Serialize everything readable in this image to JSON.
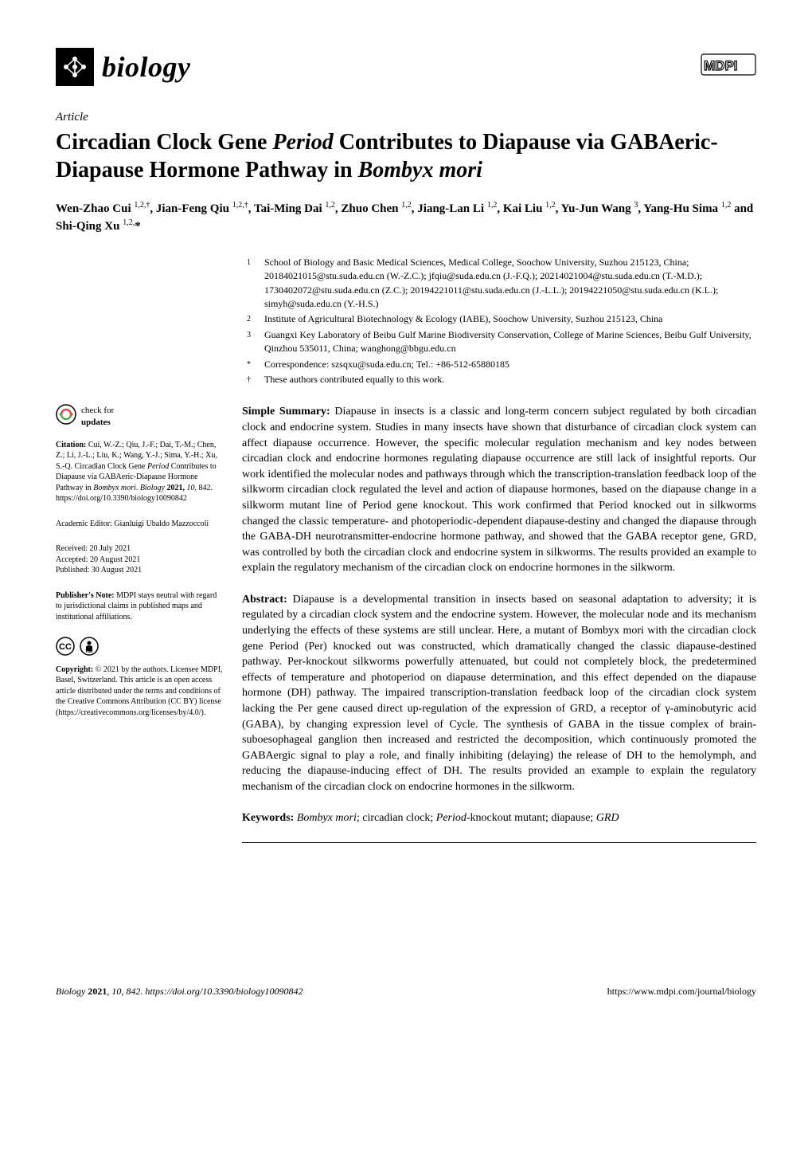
{
  "header": {
    "journal_name": "biology",
    "publisher_logo": "MDPI"
  },
  "article": {
    "type": "Article",
    "title_pre": "Circadian Clock Gene ",
    "title_ital1": "Period",
    "title_mid": " Contributes to Diapause via GABAeric-Diapause Hormone Pathway in ",
    "title_ital2": "Bombyx mori"
  },
  "authors_html": "Wen-Zhao Cui <sup>1,2,†</sup>, Jian-Feng Qiu <sup>1,2,†</sup>, Tai-Ming Dai <sup>1,2</sup>, Zhuo Chen <sup>1,2</sup>, Jiang-Lan Li <sup>1,2</sup>, Kai Liu <sup>1,2</sup>, Yu-Jun Wang <sup>3</sup>, Yang-Hu Sima <sup>1,2</sup> and Shi-Qing Xu <sup>1,2,</sup>*",
  "affiliations": [
    {
      "num": "1",
      "text": "School of Biology and Basic Medical Sciences, Medical College, Soochow University, Suzhou 215123, China; 20184021015@stu.suda.edu.cn (W.-Z.C.); jfqiu@suda.edu.cn (J.-F.Q.); 20214021004@stu.suda.edu.cn (T.-M.D.); 1730402072@stu.suda.edu.cn (Z.C.); 20194221011@stu.suda.edu.cn (J.-L.L.); 20194221050@stu.suda.edu.cn (K.L.); simyh@suda.edu.cn (Y.-H.S.)"
    },
    {
      "num": "2",
      "text": "Institute of Agricultural Biotechnology & Ecology (IABE), Soochow University, Suzhou 215123, China"
    },
    {
      "num": "3",
      "text": "Guangxi Key Laboratory of Beibu Gulf Marine Biodiversity Conservation, College of Marine Sciences, Beibu Gulf University, Qinzhou 535011, China; wanghong@bbgu.edu.cn"
    },
    {
      "num": "*",
      "text": "Correspondence: szsqxu@suda.edu.cn; Tel.: +86-512-65880185"
    },
    {
      "num": "†",
      "text": "These authors contributed equally to this work."
    }
  ],
  "sidebar": {
    "check_updates_l1": "check for",
    "check_updates_l2": "updates",
    "citation_label": "Citation:",
    "citation_text": " Cui, W.-Z.; Qiu, J.-F.; Dai, T.-M.; Chen, Z.; Li, J.-L.; Liu, K.; Wang, Y.-J.; Sima, Y.-H.; Xu, S.-Q. Circadian Clock Gene ",
    "citation_ital": "Period",
    "citation_text2": " Contributes to Diapause via GABAeric-Diapause Hormone Pathway in ",
    "citation_ital2": "Bombyx mori",
    "citation_text3": ". ",
    "citation_journal": "Biology",
    "citation_text4": " 2021, ",
    "citation_vol": "10",
    "citation_text5": ", 842. https://doi.org/10.3390/biology10090842",
    "editor_label": "Academic Editor:",
    "editor_name": " Gianluigi Ubaldo Mazzoccoli",
    "received": "Received: 20 July 2021",
    "accepted": "Accepted: 20 August 2021",
    "published": "Published: 30 August 2021",
    "pubnote_label": "Publisher's Note:",
    "pubnote_text": " MDPI stays neutral with regard to jurisdictional claims in published maps and institutional affiliations.",
    "copyright_label": "Copyright:",
    "copyright_text": " © 2021 by the authors. Licensee MDPI, Basel, Switzerland. This article is an open access article distributed under the terms and conditions of the Creative Commons Attribution (CC BY) license (https://creativecommons.org/licenses/by/4.0/)."
  },
  "simple_summary": {
    "label": "Simple Summary:",
    "text": " Diapause in insects is a classic and long-term concern subject regulated by both circadian clock and endocrine system. Studies in many insects have shown that disturbance of circadian clock system can affect diapause occurrence. However, the specific molecular regulation mechanism and key nodes between circadian clock and endocrine hormones regulating diapause occurrence are still lack of insightful reports. Our work identified the molecular nodes and pathways through which the transcription-translation feedback loop of the silkworm circadian clock regulated the level and action of diapause hormones, based on the diapause change in a silkworm mutant line of Period gene knockout. This work confirmed that Period knocked out in silkworms changed the classic temperature- and photoperiodic-dependent diapause-destiny and changed the diapause through the GABA-DH neurotransmitter-endocrine hormone pathway, and showed that the GABA receptor gene, GRD, was controlled by both the circadian clock and endocrine system in silkworms. The results provided an example to explain the regulatory mechanism of the circadian clock on endocrine hormones in the silkworm."
  },
  "abstract": {
    "label": "Abstract:",
    "text": " Diapause is a developmental transition in insects based on seasonal adaptation to adversity; it is regulated by a circadian clock system and the endocrine system. However, the molecular node and its mechanism underlying the effects of these systems are still unclear. Here, a mutant of Bombyx mori with the circadian clock gene Period (Per) knocked out was constructed, which dramatically changed the classic diapause-destined pathway. Per-knockout silkworms powerfully attenuated, but could not completely block, the predetermined effects of temperature and photoperiod on diapause determination, and this effect depended on the diapause hormone (DH) pathway. The impaired transcription-translation feedback loop of the circadian clock system lacking the Per gene caused direct up-regulation of the expression of GRD, a receptor of γ-aminobutyric acid (GABA), by changing expression level of Cycle. The synthesis of GABA in the tissue complex of brain-suboesophageal ganglion then increased and restricted the decomposition, which continuously promoted the GABAergic signal to play a role, and finally inhibiting (delaying) the release of DH to the hemolymph, and reducing the diapause-inducing effect of DH. The results provided an example to explain the regulatory mechanism of the circadian clock on endocrine hormones in the silkworm."
  },
  "keywords": {
    "label": "Keywords:",
    "text_ital": " Bombyx mori",
    "text_rest": "; circadian clock; ",
    "text_ital2": "Period",
    "text_rest2": "-knockout mutant; diapause; ",
    "text_ital3": "GRD"
  },
  "footer": {
    "left_ital": "Biology ",
    "left_bold": "2021",
    "left_rest": ", 10, 842. https://doi.org/10.3390/biology10090842",
    "right": "https://www.mdpi.com/journal/biology"
  },
  "colors": {
    "text": "#000000",
    "bg": "#ffffff",
    "accent": "#8a8a8a",
    "cc_green": "#a7c93f"
  }
}
